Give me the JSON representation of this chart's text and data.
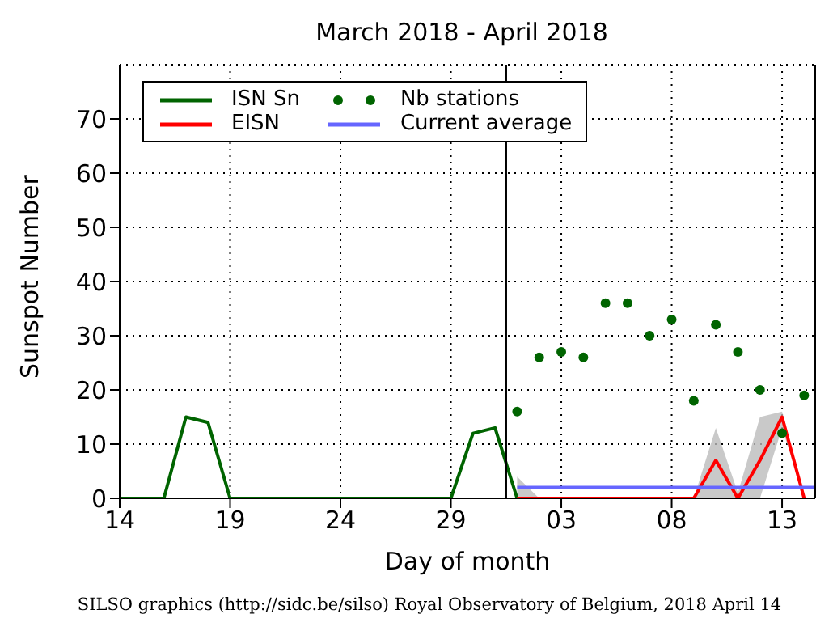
{
  "chart_data": {
    "type": "line",
    "title": "March 2018 - April 2018",
    "xlabel": "Day of month",
    "ylabel": "Sunspot Number",
    "annotations": [
      "SILSO graphics (http://sidc.be/silso) Royal Observatory of Belgium, 2018 April 14"
    ],
    "xlim": [
      "2018-03-14",
      "2018-04-14T12:00"
    ],
    "xticks": [
      {
        "value": "2018-03-14",
        "label": "14"
      },
      {
        "value": "2018-03-19",
        "label": "19"
      },
      {
        "value": "2018-03-24",
        "label": "24"
      },
      {
        "value": "2018-03-29",
        "label": "29"
      },
      {
        "value": "2018-04-03",
        "label": "03"
      },
      {
        "value": "2018-04-08",
        "label": "08"
      },
      {
        "value": "2018-04-13",
        "label": "13"
      }
    ],
    "ylim": [
      0,
      80
    ],
    "yticks": [
      0,
      10,
      20,
      30,
      40,
      50,
      60,
      70
    ],
    "grid": true,
    "legend": "top left",
    "line_style": "solid",
    "ref_lines": [
      {
        "axis": "x",
        "value": "2018-03-31T12:00",
        "color": "#000000"
      }
    ],
    "series": [
      {
        "name": "ISN Sn",
        "color": "#006400",
        "x": [
          "2018-03-14",
          "2018-03-15",
          "2018-03-16",
          "2018-03-17",
          "2018-03-18",
          "2018-03-19",
          "2018-03-20",
          "2018-03-21",
          "2018-03-22",
          "2018-03-23",
          "2018-03-24",
          "2018-03-25",
          "2018-03-26",
          "2018-03-27",
          "2018-03-28",
          "2018-03-29",
          "2018-03-30",
          "2018-03-31",
          "2018-04-01"
        ],
        "values": [
          0,
          0,
          0,
          15,
          14,
          0,
          0,
          0,
          0,
          0,
          0,
          0,
          0,
          0,
          0,
          0,
          12,
          13,
          0
        ]
      },
      {
        "name": "EISN",
        "color": "#ff0000",
        "x": [
          "2018-04-01",
          "2018-04-02",
          "2018-04-03",
          "2018-04-04",
          "2018-04-05",
          "2018-04-06",
          "2018-04-07",
          "2018-04-08",
          "2018-04-09",
          "2018-04-10",
          "2018-04-11",
          "2018-04-12",
          "2018-04-13",
          "2018-04-14"
        ],
        "values": [
          0,
          0,
          0,
          0,
          0,
          0,
          0,
          0,
          0,
          7,
          0,
          7,
          15,
          0
        ],
        "lower": [
          0,
          0,
          0,
          0,
          0,
          0,
          0,
          0,
          0,
          0,
          0,
          0,
          13,
          0
        ],
        "upper": [
          4,
          0,
          0,
          0,
          0,
          0,
          0,
          0,
          0,
          13,
          1,
          15,
          16,
          0
        ]
      },
      {
        "name": "Nb stations",
        "type": "scatter",
        "color": "#006400",
        "marker": "circle",
        "x": [
          "2018-04-01",
          "2018-04-02",
          "2018-04-03",
          "2018-04-04",
          "2018-04-05",
          "2018-04-06",
          "2018-04-07",
          "2018-04-08",
          "2018-04-09",
          "2018-04-10",
          "2018-04-11",
          "2018-04-12",
          "2018-04-13",
          "2018-04-14"
        ],
        "values": [
          16,
          26,
          27,
          26,
          36,
          36,
          30,
          33,
          18,
          32,
          27,
          20,
          12,
          19
        ]
      },
      {
        "name": "Current average",
        "color": "#6666ff",
        "x": [
          "2018-04-01",
          "2018-04-14T12:00"
        ],
        "values": [
          2,
          2
        ]
      }
    ]
  }
}
